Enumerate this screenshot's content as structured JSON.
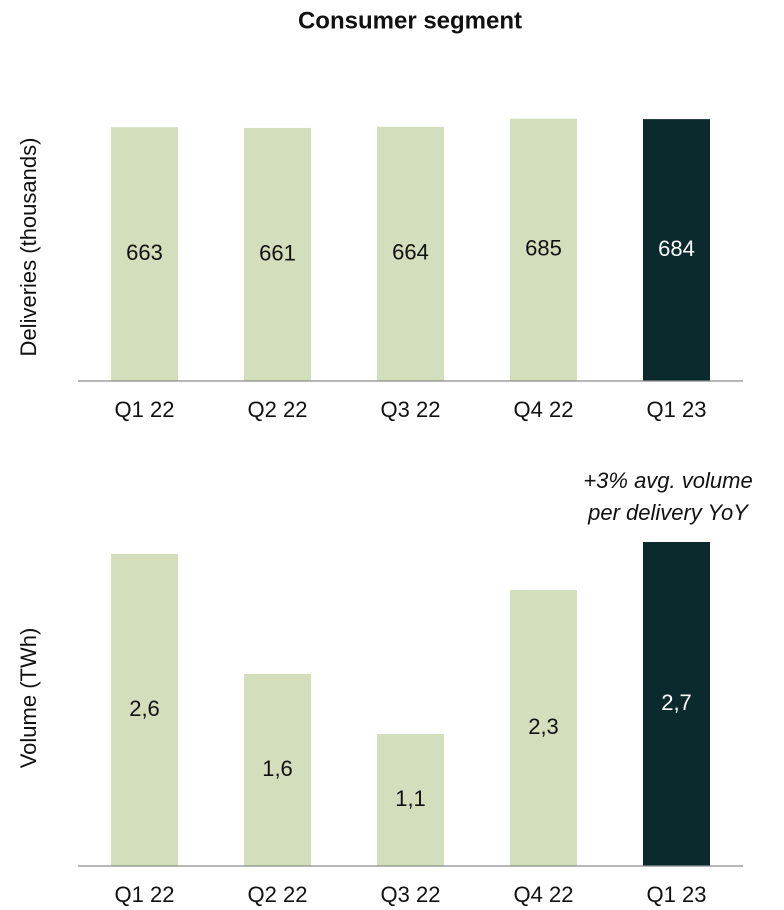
{
  "title": "Consumer segment",
  "chart_data": [
    {
      "type": "bar",
      "ylabel": "Deliveries (thousands)",
      "categories": [
        "Q1 22",
        "Q2 22",
        "Q3 22",
        "Q4 22",
        "Q1 23"
      ],
      "values": [
        663,
        661,
        664,
        685,
        684
      ],
      "colors": [
        "#d3dfbc",
        "#d3dfbc",
        "#d3dfbc",
        "#d3dfbc",
        "#0b2a2e"
      ],
      "ylim": [
        0,
        700
      ]
    },
    {
      "type": "bar",
      "ylabel": "Volume (TWh)",
      "categories": [
        "Q1 22",
        "Q2 22",
        "Q3 22",
        "Q4 22",
        "Q1 23"
      ],
      "values": [
        2.6,
        1.6,
        1.1,
        2.3,
        2.7
      ],
      "value_labels": [
        "2,6",
        "1,6",
        "1,1",
        "2,3",
        "2,7"
      ],
      "colors": [
        "#d3dfbc",
        "#d3dfbc",
        "#d3dfbc",
        "#d3dfbc",
        "#0b2a2e"
      ],
      "ylim": [
        0,
        2.8
      ],
      "annotation": [
        "+3% avg. volume",
        "per delivery YoY"
      ]
    }
  ]
}
